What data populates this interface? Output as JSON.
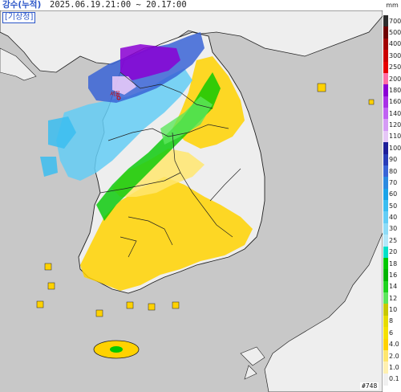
{
  "header": {
    "title": "강수(누적)",
    "period": "2025.06.19.21:00 ~ 20.17:00",
    "agency": "[기상청]"
  },
  "legend": {
    "unit": "mm",
    "levels": [
      {
        "label": "700",
        "color": "#2e2e2e"
      },
      {
        "label": "500",
        "color": "#6e0000"
      },
      {
        "label": "400",
        "color": "#a10000"
      },
      {
        "label": "300",
        "color": "#cc0000"
      },
      {
        "label": "250",
        "color": "#e60000"
      },
      {
        "label": "200",
        "color": "#ff6ea5"
      },
      {
        "label": "180",
        "color": "#8a00d4"
      },
      {
        "label": "160",
        "color": "#a830e6"
      },
      {
        "label": "140",
        "color": "#c063f2"
      },
      {
        "label": "120",
        "color": "#d59bf5"
      },
      {
        "label": "110",
        "color": "#e6c8f7"
      },
      {
        "label": "100",
        "color": "#1f1f99"
      },
      {
        "label": "90",
        "color": "#2a3eb8"
      },
      {
        "label": "80",
        "color": "#3a64d6"
      },
      {
        "label": "70",
        "color": "#2c8ae0"
      },
      {
        "label": "60",
        "color": "#1aa3e8"
      },
      {
        "label": "50",
        "color": "#3bbdf0"
      },
      {
        "label": "40",
        "color": "#64cdf5"
      },
      {
        "label": "30",
        "color": "#8edcf7"
      },
      {
        "label": "25",
        "color": "#b2e8fa"
      },
      {
        "label": "20",
        "color": "#00e0c8"
      },
      {
        "label": "18",
        "color": "#00c800"
      },
      {
        "label": "16",
        "color": "#00b400"
      },
      {
        "label": "14",
        "color": "#1ed21e"
      },
      {
        "label": "12",
        "color": "#5ce65c"
      },
      {
        "label": "10",
        "color": "#c8c800"
      },
      {
        "label": "8",
        "color": "#e6dc00"
      },
      {
        "label": "6",
        "color": "#f5e100"
      },
      {
        "label": "4.0",
        "color": "#ffd200"
      },
      {
        "label": "2.0",
        "color": "#ffe66e"
      },
      {
        "label": "1.0",
        "color": "#fff0b0"
      },
      {
        "label": "0.1",
        "color": "#f0f0f0"
      }
    ]
  },
  "marker_label": "서울",
  "stamp": "#748",
  "colors": {
    "sea": "#c8c8c8",
    "land": "#eeeeee",
    "border": "#222222"
  }
}
